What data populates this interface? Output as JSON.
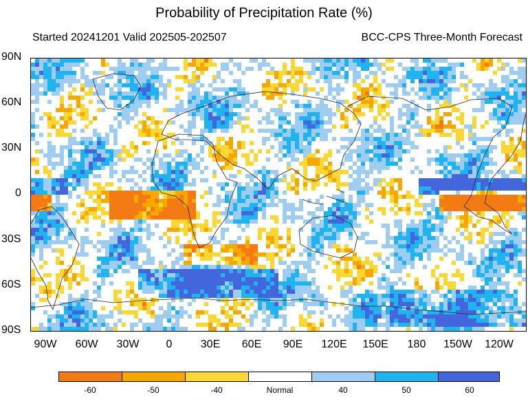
{
  "header": {
    "title": "Probability of Precipitation Rate (%)",
    "subtitle_left": "Started 20241201  Valid 202505-202507",
    "subtitle_right": "BCC-CPS Three-Month Forecast"
  },
  "map": {
    "projection": "cylindrical-equidistant",
    "center_longitude": 150,
    "lat_ticks": [
      "90N",
      "60N",
      "30N",
      "0",
      "30S",
      "60S",
      "90S"
    ],
    "lon_ticks": [
      "90W",
      "60W",
      "30W",
      "0",
      "30E",
      "60E",
      "90E",
      "120E",
      "150E",
      "180",
      "150W",
      "120W"
    ],
    "features": [
      {
        "label": "equatorial dry band (Atlantic)",
        "category": "-60"
      },
      {
        "label": "equatorial dry band (East Pacific)",
        "category": "-60"
      },
      {
        "label": "equatorial wet band (Pacific)",
        "category": "60"
      },
      {
        "label": "Southern Ocean wet band",
        "category": "60"
      },
      {
        "label": "Antarctic wet band",
        "category": "60"
      }
    ]
  },
  "legend": {
    "labels": [
      "-60",
      "-50",
      "-40",
      "Normal",
      "40",
      "50",
      "60"
    ],
    "colors": [
      "#f47b13",
      "#f7a800",
      "#fbd733",
      "#ffffff",
      "#9fcdf2",
      "#1fb4ef",
      "#4466dd"
    ]
  }
}
